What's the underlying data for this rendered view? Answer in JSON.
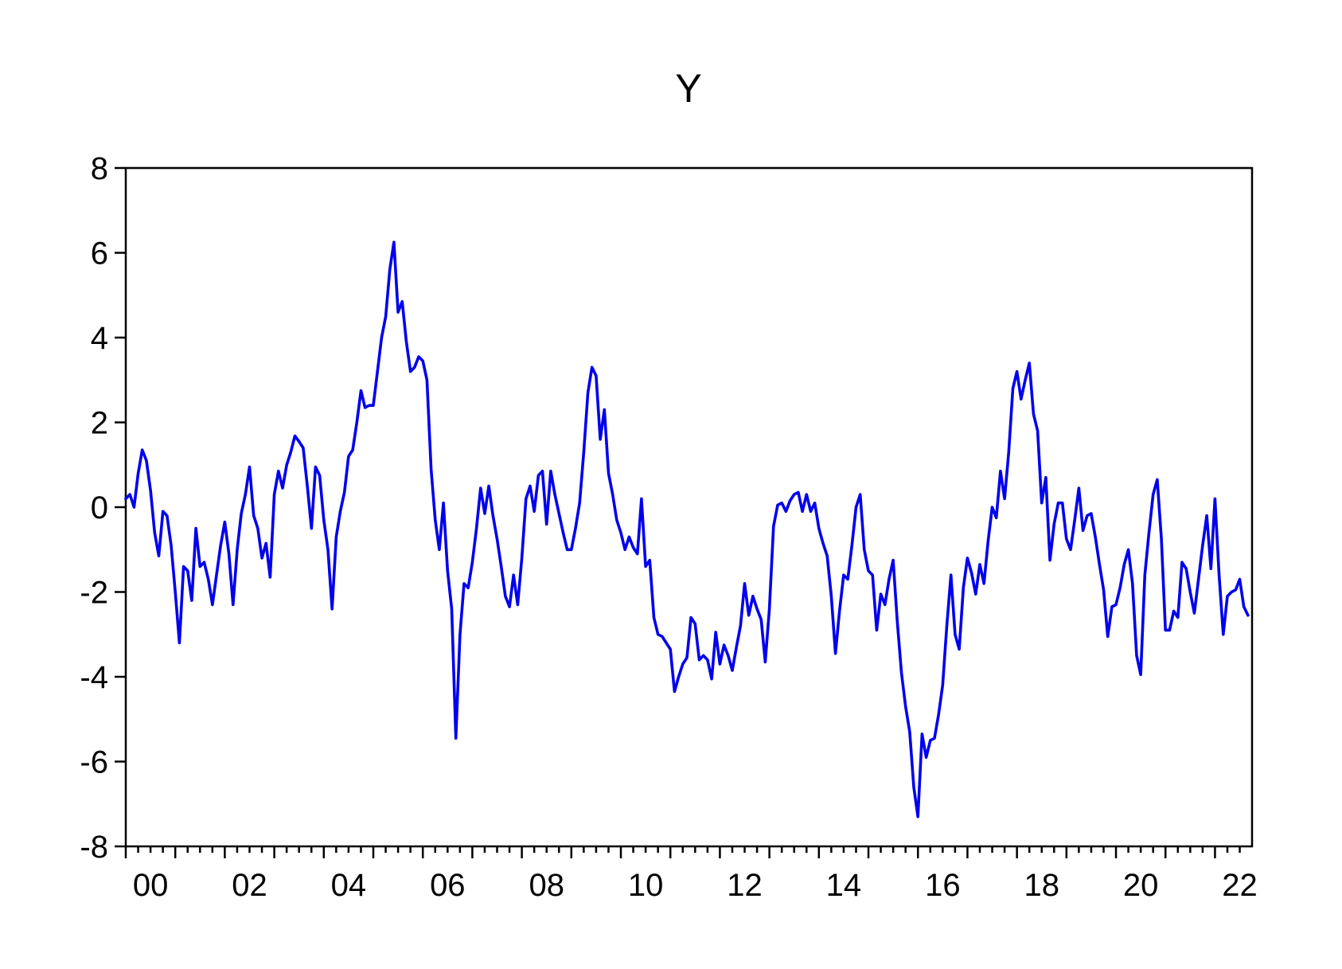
{
  "page": {
    "background": "#ffffff"
  },
  "chart_data": {
    "type": "line",
    "title": "Y",
    "series_name": "Y",
    "frequency": "monthly",
    "start_period": "2000M01",
    "end_period": "2022M09",
    "xlabel": "",
    "ylabel": "",
    "ylim": [
      -8,
      8
    ],
    "grid": false,
    "legend": "none",
    "y_ticks": [
      8,
      6,
      4,
      2,
      0,
      -2,
      -4,
      -6,
      -8
    ],
    "x_tick_labels": [
      "00",
      "02",
      "04",
      "06",
      "08",
      "10",
      "12",
      "14",
      "16",
      "18",
      "20",
      "22"
    ],
    "minor_x_ticks_per_year": 4,
    "colors": {
      "line": "#0000EE",
      "axis": "#000000",
      "text": "#000000"
    },
    "values": [
      0.2,
      0.3,
      0.0,
      0.8,
      1.35,
      1.1,
      0.4,
      -0.6,
      -1.15,
      -0.1,
      -0.2,
      -0.9,
      -2.0,
      -3.2,
      -1.4,
      -1.5,
      -2.2,
      -0.5,
      -1.4,
      -1.3,
      -1.7,
      -2.3,
      -1.6,
      -0.9,
      -0.35,
      -1.1,
      -2.3,
      -1.0,
      -0.15,
      0.3,
      0.95,
      -0.2,
      -0.5,
      -1.2,
      -0.85,
      -1.65,
      0.3,
      0.85,
      0.45,
      1.0,
      1.3,
      1.68,
      1.55,
      1.4,
      0.5,
      -0.5,
      0.95,
      0.75,
      -0.3,
      -1.0,
      -2.4,
      -0.7,
      -0.1,
      0.35,
      1.2,
      1.35,
      2.0,
      2.75,
      2.35,
      2.4,
      2.4,
      3.2,
      4.0,
      4.5,
      5.6,
      6.25,
      4.6,
      4.85,
      3.9,
      3.2,
      3.3,
      3.55,
      3.45,
      3.0,
      0.9,
      -0.3,
      -1.0,
      0.1,
      -1.5,
      -2.4,
      -5.45,
      -3.0,
      -1.8,
      -1.9,
      -1.3,
      -0.5,
      0.45,
      -0.15,
      0.5,
      -0.2,
      -0.75,
      -1.4,
      -2.1,
      -2.35,
      -1.6,
      -2.3,
      -1.2,
      0.2,
      0.5,
      -0.1,
      0.75,
      0.85,
      -0.4,
      0.85,
      0.3,
      -0.15,
      -0.6,
      -1.0,
      -1.0,
      -0.5,
      0.1,
      1.3,
      2.7,
      3.3,
      3.1,
      1.6,
      2.3,
      0.8,
      0.3,
      -0.3,
      -0.6,
      -1.0,
      -0.7,
      -0.95,
      -1.1,
      0.2,
      -1.4,
      -1.25,
      -2.6,
      -3.0,
      -3.05,
      -3.2,
      -3.35,
      -4.35,
      -4.0,
      -3.7,
      -3.55,
      -2.6,
      -2.75,
      -3.6,
      -3.5,
      -3.6,
      -4.05,
      -2.95,
      -3.7,
      -3.25,
      -3.5,
      -3.85,
      -3.3,
      -2.8,
      -1.8,
      -2.55,
      -2.1,
      -2.4,
      -2.65,
      -3.65,
      -2.4,
      -0.45,
      0.05,
      0.1,
      -0.1,
      0.15,
      0.3,
      0.35,
      -0.1,
      0.3,
      -0.1,
      0.1,
      -0.5,
      -0.85,
      -1.15,
      -2.1,
      -3.45,
      -2.45,
      -1.6,
      -1.7,
      -0.9,
      0.0,
      0.3,
      -1.0,
      -1.5,
      -1.6,
      -2.9,
      -2.05,
      -2.3,
      -1.7,
      -1.25,
      -2.7,
      -3.9,
      -4.7,
      -5.3,
      -6.6,
      -7.3,
      -5.35,
      -5.9,
      -5.5,
      -5.45,
      -4.9,
      -4.2,
      -2.8,
      -1.6,
      -3.0,
      -3.35,
      -1.9,
      -1.2,
      -1.55,
      -2.05,
      -1.35,
      -1.8,
      -0.8,
      0.0,
      -0.25,
      0.85,
      0.2,
      1.3,
      2.8,
      3.2,
      2.55,
      3.0,
      3.4,
      2.2,
      1.8,
      0.1,
      0.7,
      -1.25,
      -0.4,
      0.1,
      0.1,
      -0.75,
      -1.0,
      -0.3,
      0.45,
      -0.55,
      -0.2,
      -0.15,
      -0.7,
      -1.35,
      -1.95,
      -3.05,
      -2.35,
      -2.3,
      -1.9,
      -1.35,
      -1.0,
      -1.8,
      -3.5,
      -3.95,
      -1.6,
      -0.6,
      0.3,
      0.65,
      -0.75,
      -2.9,
      -2.9,
      -2.45,
      -2.6,
      -1.3,
      -1.45,
      -2.0,
      -2.5,
      -1.7,
      -0.9,
      -0.2,
      -1.45,
      0.2,
      -1.6,
      -3.0,
      -2.1,
      -2.0,
      -1.95,
      -1.7,
      -2.35,
      -2.55
    ]
  }
}
